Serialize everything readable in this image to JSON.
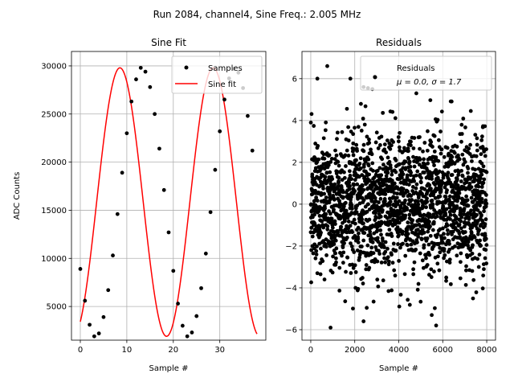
{
  "figure": {
    "suptitle": "Run 2084, channel4, Sine Freq.: 2.005 MHz"
  },
  "colors": {
    "samples": "#000000",
    "fit": "#ff0000",
    "residuals": "#000000",
    "grid": "#b0b0b0"
  },
  "chart_data": [
    {
      "type": "scatter",
      "title": "Sine Fit",
      "xlabel": "Sample #",
      "ylabel": "ADC Counts",
      "xlim": [
        -1.9,
        39.9
      ],
      "ylim": [
        1500,
        31500
      ],
      "xticks": [
        0,
        10,
        20,
        30
      ],
      "yticks": [
        5000,
        10000,
        15000,
        20000,
        25000,
        30000
      ],
      "grid": true,
      "legend": {
        "placement": "top-right",
        "entries": [
          "Samples",
          "Sine fit"
        ]
      },
      "series": [
        {
          "name": "Samples",
          "style": "points",
          "x": [
            0,
            1,
            2,
            3,
            4,
            5,
            6,
            7,
            8,
            9,
            10,
            11,
            12,
            13,
            14,
            15,
            16,
            17,
            18,
            19,
            20,
            21,
            22,
            23,
            24,
            25,
            26,
            27,
            28,
            29,
            30,
            31,
            32,
            33,
            34,
            35,
            36,
            37
          ],
          "y": [
            8900,
            5600,
            3100,
            1900,
            2200,
            3900,
            6700,
            10300,
            14600,
            18900,
            23000,
            26300,
            28600,
            29800,
            29400,
            27800,
            25000,
            21400,
            17100,
            12700,
            8700,
            5300,
            3000,
            1900,
            2300,
            4000,
            6900,
            10500,
            14800,
            19200,
            23200,
            26500,
            28700,
            29700,
            29300,
            27700,
            24800,
            21200
          ]
        },
        {
          "name": "Sine fit",
          "style": "line",
          "model": {
            "offset": 15850,
            "amplitude": 13950,
            "period": 20.05,
            "phase": -1.1
          },
          "x_range": [
            0,
            38
          ]
        }
      ]
    },
    {
      "type": "scatter",
      "title": "Residuals",
      "xlabel": "Sample #",
      "ylabel": "",
      "xlim": [
        -400,
        8400
      ],
      "ylim": [
        -6.5,
        7.3
      ],
      "xticks": [
        0,
        2000,
        4000,
        6000,
        8000
      ],
      "yticks": [
        -6,
        -4,
        -2,
        0,
        2,
        4,
        6
      ],
      "grid": true,
      "legend": {
        "placement": "top-right",
        "entries": [
          "Residuals"
        ],
        "stats_text": "μ = 0.0, σ = 1.7"
      },
      "series": [
        {
          "name": "Residuals",
          "n_points": 8000,
          "mean": 0.0,
          "std": 1.7,
          "notable_points": [
            {
              "x": 750,
              "y": 6.6
            },
            {
              "x": 300,
              "y": 6.0
            },
            {
              "x": 1800,
              "y": 6.0
            },
            {
              "x": 2900,
              "y": 6.1
            },
            {
              "x": 2400,
              "y": 5.6
            },
            {
              "x": 2600,
              "y": 5.55
            },
            {
              "x": 2800,
              "y": 5.5
            },
            {
              "x": 4800,
              "y": 5.3
            },
            {
              "x": 900,
              "y": -5.9
            },
            {
              "x": 2400,
              "y": -5.6
            },
            {
              "x": 5700,
              "y": -5.8
            },
            {
              "x": 5500,
              "y": -5.3
            }
          ]
        }
      ]
    }
  ]
}
